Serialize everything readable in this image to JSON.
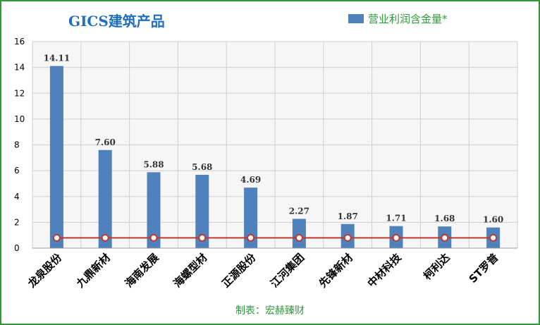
{
  "chart_data": {
    "type": "bar",
    "title": "GICS建筑产品",
    "categories": [
      "龙泉股份",
      "九鼎新材",
      "海南发展",
      "海螺型材",
      "正源股份",
      "江河集团",
      "先锋新材",
      "中材科技",
      "柯利达",
      "ST罗普"
    ],
    "series": [
      {
        "name": "营业利润含金量*",
        "values": [
          14.11,
          7.6,
          5.88,
          5.68,
          4.69,
          2.27,
          1.87,
          1.71,
          1.68,
          1.6
        ],
        "labels": [
          "14.11",
          "7.60",
          "5.88",
          "5.68",
          "4.69",
          "2.27",
          "1.87",
          "1.71",
          "1.68",
          "1.60"
        ]
      },
      {
        "name": "",
        "type": "line",
        "values": [
          0.8,
          0.8,
          0.8,
          0.8,
          0.8,
          0.8,
          0.8,
          0.8,
          0.8,
          0.8
        ]
      }
    ],
    "yticks": [
      "0",
      "2",
      "4",
      "6",
      "8",
      "10",
      "12",
      "14",
      "16"
    ],
    "ylim": [
      0,
      16
    ],
    "xlabel": "",
    "ylabel": "",
    "grid": true,
    "legend": "top-right",
    "colors": {
      "bar": "#4f81bd",
      "line": "#c0392b",
      "marker_fill": "#ffffff",
      "title": "#1f6fbf",
      "frame": "#2e9a3a",
      "grid": "#cfcfcf"
    }
  },
  "source": "制表：宏赫臻财"
}
